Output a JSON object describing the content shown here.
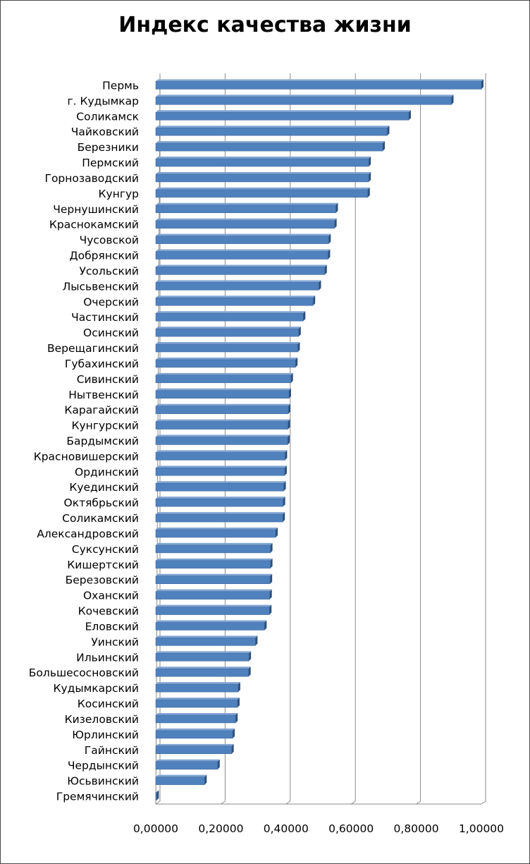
{
  "chart_data": {
    "type": "bar",
    "orientation": "horizontal",
    "title": "Индекс качества жизни",
    "xlabel": "",
    "ylabel": "",
    "xlim": [
      0,
      1
    ],
    "grid": "vertical",
    "legend": "none",
    "bar_color": "#4f81bd",
    "categories": [
      "Пермь",
      "г. Кудымкар",
      "Соликамск",
      "Чайковский",
      "Березники",
      "Пермский",
      "Горнозаводский",
      "Кунгур",
      "Чернушинский",
      "Краснокамский",
      "Чусовской",
      "Добрянский",
      "Усольский",
      "Лысьвенский",
      "Очерский",
      "Частинский",
      "Осинский",
      "Верещагинский",
      "Губахинский",
      "Сивинский",
      "Нытвенский",
      "Карагайский",
      "Кунгурский",
      "Бардымский",
      "Красновишерский",
      "Ординский",
      "Куединский",
      "Октябрьский",
      "Соликамский",
      "Александровский",
      "Суксунский",
      "Кишертский",
      "Березовский",
      "Оханский",
      "Кочевский",
      "Еловский",
      "Уинский",
      "Ильинский",
      "Большесосновский",
      "Кудымкарский",
      "Косинский",
      "Кизеловский",
      "Юрлинский",
      "Гайнский",
      "Чердынский",
      "Юсьвинский",
      "Гремячинский"
    ],
    "values": [
      1.0,
      0.908,
      0.777,
      0.711,
      0.697,
      0.654,
      0.654,
      0.651,
      0.553,
      0.549,
      0.531,
      0.529,
      0.519,
      0.501,
      0.483,
      0.453,
      0.439,
      0.436,
      0.429,
      0.415,
      0.409,
      0.407,
      0.406,
      0.405,
      0.397,
      0.396,
      0.393,
      0.391,
      0.39,
      0.368,
      0.352,
      0.352,
      0.351,
      0.35,
      0.349,
      0.334,
      0.306,
      0.286,
      0.285,
      0.253,
      0.251,
      0.245,
      0.236,
      0.233,
      0.19,
      0.15,
      0.003
    ],
    "x_ticks": [
      "0,00000",
      "0,20000",
      "0,40000",
      "0,60000",
      "0,80000",
      "1,00000"
    ]
  }
}
